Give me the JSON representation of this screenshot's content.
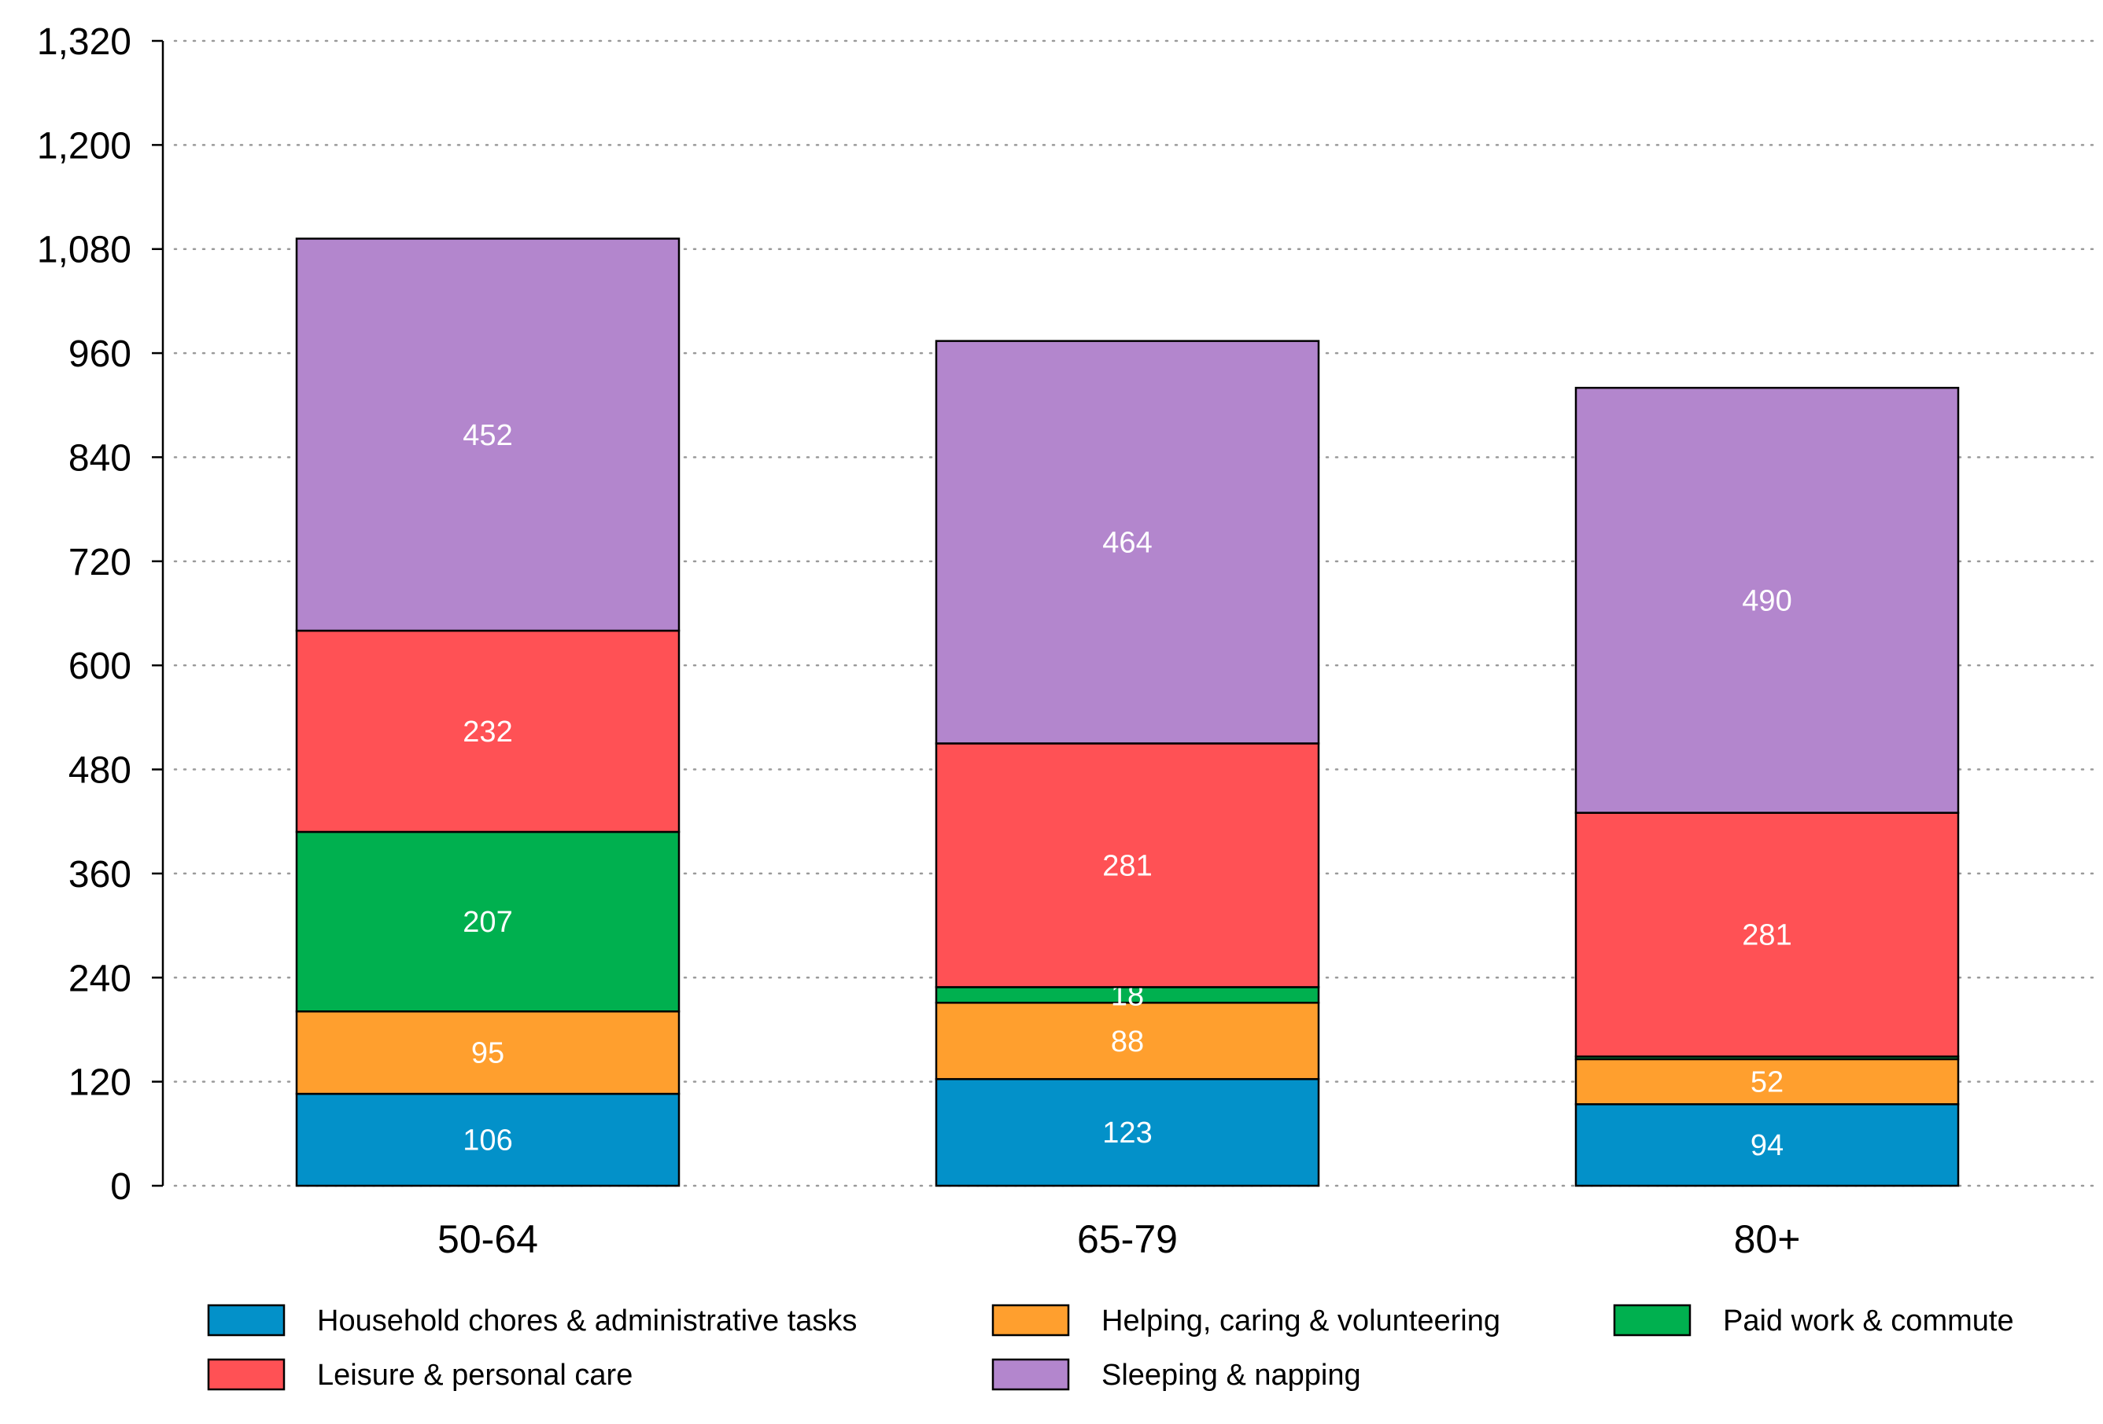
{
  "chart_data": {
    "type": "bar",
    "stacked": true,
    "categories": [
      "50-64",
      "65-79",
      "80+"
    ],
    "ylim": [
      0,
      1320
    ],
    "yticks": [
      0,
      120,
      240,
      360,
      480,
      600,
      720,
      840,
      960,
      1080,
      1200,
      1320
    ],
    "ytick_labels": [
      "0",
      "120",
      "240",
      "360",
      "480",
      "600",
      "720",
      "840",
      "960",
      "1,080",
      "1,200",
      "1,320"
    ],
    "grid": "horizontal dotted",
    "legend_position": "bottom",
    "series": [
      {
        "name": "Household chores & administrative tasks",
        "color": "#0391C9",
        "values": [
          106,
          123,
          94
        ]
      },
      {
        "name": "Helping, caring & volunteering",
        "color": "#FF9F2E",
        "values": [
          95,
          88,
          52
        ]
      },
      {
        "name": "Paid work & commute",
        "color": "#00B04F",
        "values": [
          207,
          18,
          3
        ]
      },
      {
        "name": "Leisure & personal care",
        "color": "#FF5155",
        "values": [
          232,
          281,
          281
        ]
      },
      {
        "name": "Sleeping & napping",
        "color": "#B386CD",
        "values": [
          452,
          464,
          490
        ]
      }
    ],
    "data_labels": [
      [
        "106",
        "123",
        "94"
      ],
      [
        "95",
        "88",
        "52"
      ],
      [
        "207",
        "18",
        ""
      ],
      [
        "232",
        "281",
        "281"
      ],
      [
        "452",
        "464",
        "490"
      ]
    ]
  }
}
